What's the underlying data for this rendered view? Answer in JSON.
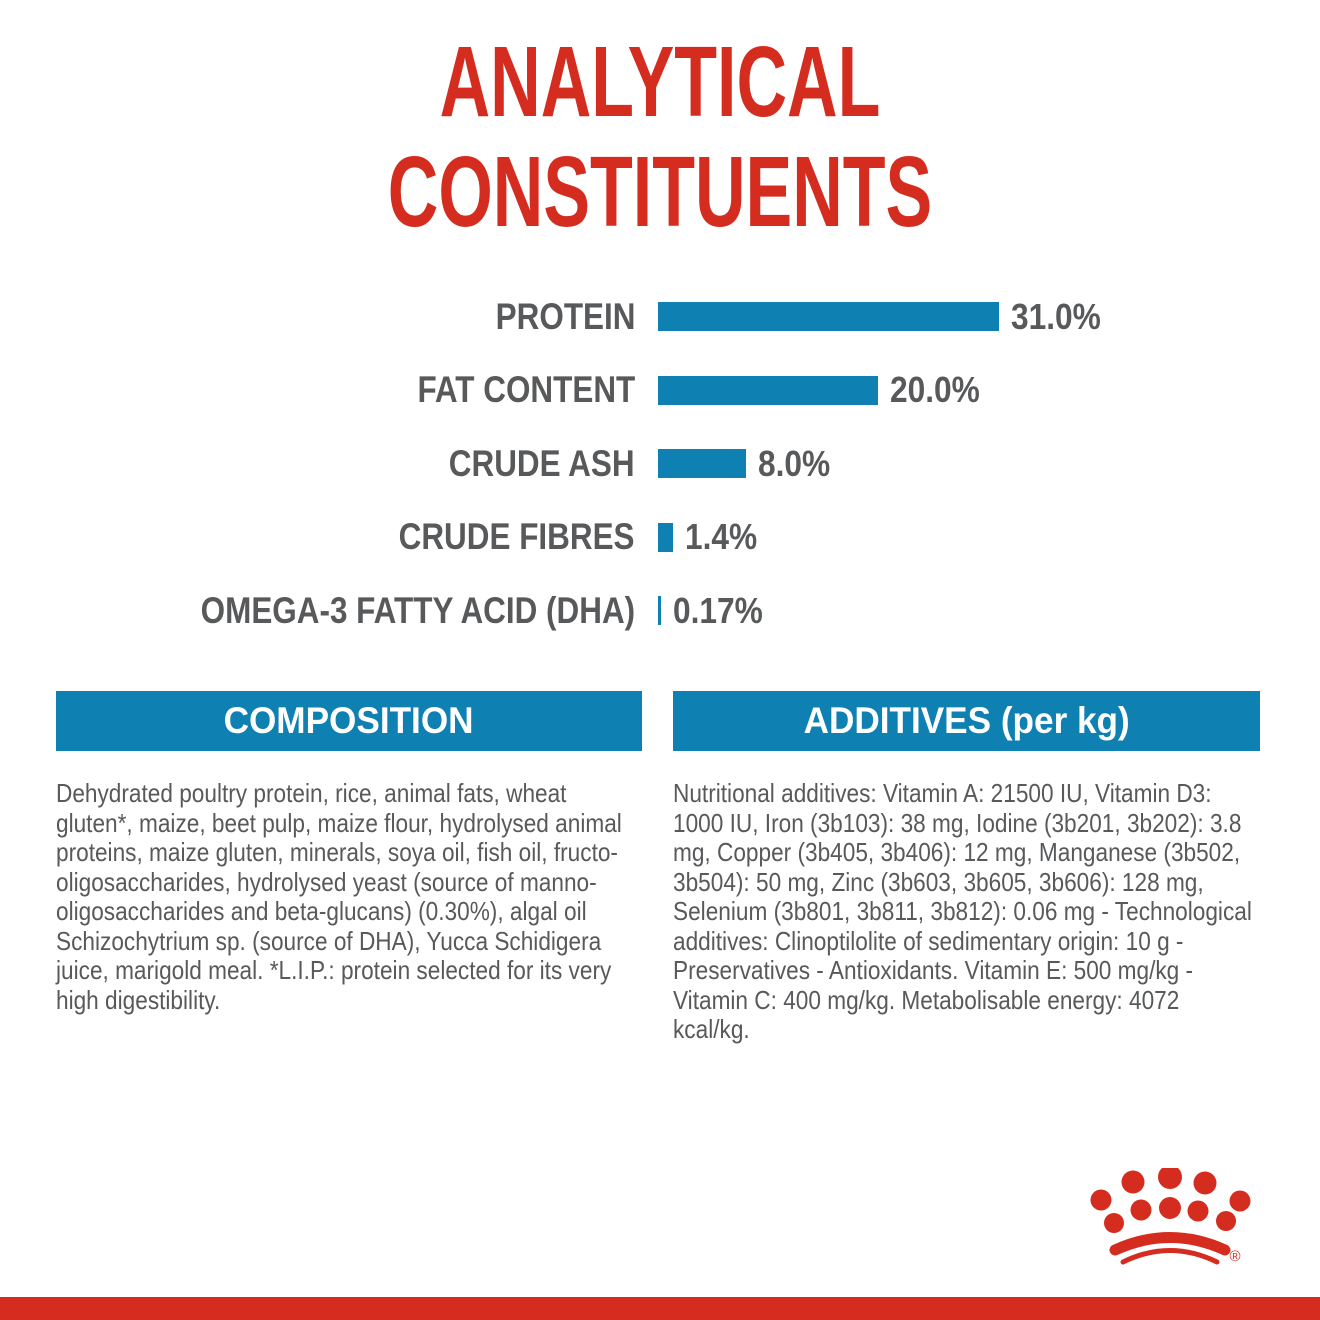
{
  "title": "ANALYTICAL\nCONSTITUENTS",
  "chart_data": {
    "type": "bar",
    "orientation": "horizontal",
    "title": "ANALYTICAL CONSTITUENTS",
    "unit": "%",
    "categories": [
      "PROTEIN",
      "FAT CONTENT",
      "CRUDE ASH",
      "CRUDE FIBRES",
      "OMEGA-3 FATTY ACID (DHA)"
    ],
    "values": [
      31.0,
      20.0,
      8.0,
      1.4,
      0.17
    ],
    "value_labels": [
      "31.0%",
      "20.0%",
      "8.0%",
      "1.4%",
      "0.17%"
    ],
    "xlim": [
      0,
      31
    ],
    "grid": false,
    "bar_color": "#0e81b2",
    "label_color": "#58595b"
  },
  "composition": {
    "header": "COMPOSITION",
    "text": "Dehydrated poultry protein, rice, animal fats, wheat gluten*, maize, beet pulp, maize flour, hydrolysed animal proteins, maize gluten, minerals, soya oil, fish oil, fructo-oligosaccharides, hydrolysed yeast (source of manno-oligosaccharides and beta-glucans) (0.30%), algal oil Schizochytrium sp. (source of DHA), Yucca Schidigera juice, marigold meal. *L.I.P.: protein selected for its very high digestibility."
  },
  "additives": {
    "header": "ADDITIVES (per kg)",
    "text": "Nutritional additives: Vitamin A: 21500 IU, Vitamin D3: 1000 IU, Iron (3b103): 38 mg, Iodine (3b201, 3b202): 3.8 mg, Copper (3b405, 3b406): 12 mg, Manganese (3b502, 3b504): 50 mg, Zinc (3b603, 3b605, 3b606): 128 mg, Selenium (3b801, 3b811, 3b812): 0.06 mg - Technological additives: Clinoptilolite of sedimentary origin: 10 g - Preservatives - Antioxidants. Vitamin E: 500 mg/kg - Vitamin C: 400 mg/kg. Metabolisable energy: 4072 kcal/kg."
  },
  "branding": {
    "logo": "royal-canin-crown",
    "registered_mark": "®"
  },
  "colors": {
    "red": "#d42d20",
    "blue": "#0e81b2",
    "text_gray": "#58595b"
  }
}
